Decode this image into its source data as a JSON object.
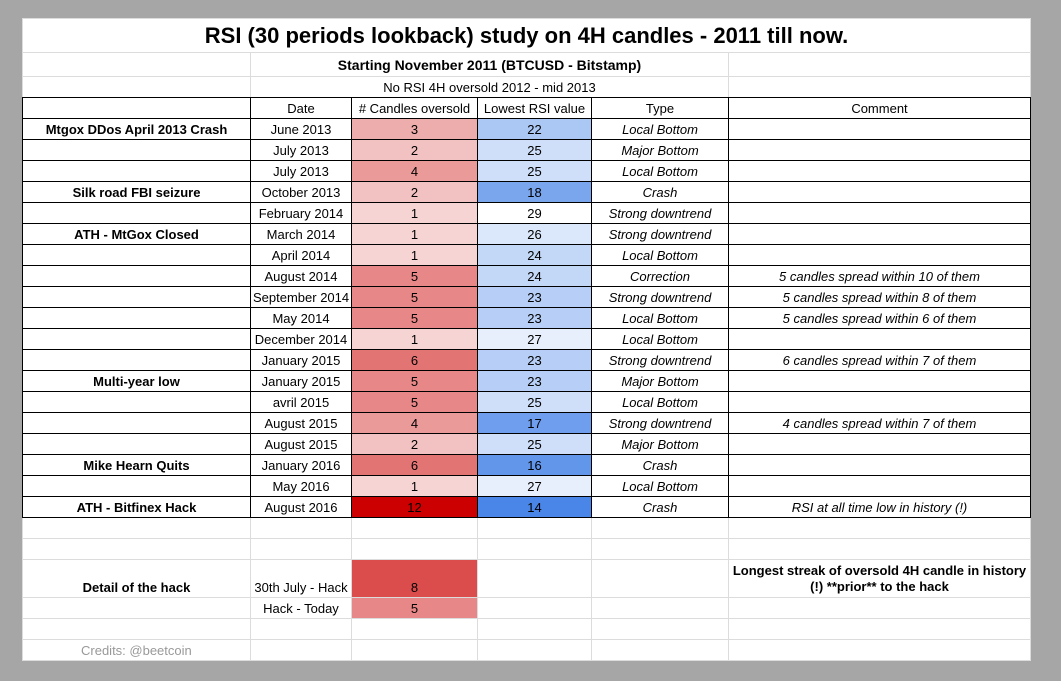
{
  "title": "RSI (30 periods lookback) study on 4H candles - 2011 till now.",
  "subtitle": "Starting November 2011 (BTCUSD - Bitstamp)",
  "note": "No RSI 4H oversold 2012 - mid 2013",
  "headers": {
    "date": "Date",
    "candles": "# Candles oversold",
    "rsi": "Lowest RSI value",
    "type": "Type",
    "comment": "Comment"
  },
  "rows": [
    {
      "label": "Mtgox DDos April 2013 Crash",
      "date": "June 2013",
      "candles": 3,
      "rsi": 22,
      "type": "Local Bottom"
    },
    {
      "date": "July 2013",
      "candles": 2,
      "rsi": 25,
      "type": "Major Bottom"
    },
    {
      "date": "July 2013",
      "candles": 4,
      "rsi": 25,
      "type": "Local Bottom"
    },
    {
      "label": "Silk road FBI seizure",
      "date": "October 2013",
      "candles": 2,
      "rsi": 18,
      "type": "Crash"
    },
    {
      "date": "February 2014",
      "candles": 1,
      "rsi": 29,
      "type": "Strong downtrend"
    },
    {
      "label": "ATH - MtGox Closed",
      "date": "March 2014",
      "candles": 1,
      "rsi": 26,
      "type": "Strong downtrend"
    },
    {
      "date": "April 2014",
      "candles": 1,
      "rsi": 24,
      "type": "Local Bottom"
    },
    {
      "date": "August 2014",
      "candles": 5,
      "rsi": 24,
      "type": "Correction",
      "comment": "5 candles spread within 10 of them"
    },
    {
      "date": "September 2014",
      "candles": 5,
      "rsi": 23,
      "type": "Strong downtrend",
      "comment": "5 candles spread within 8 of them"
    },
    {
      "date": "May 2014",
      "candles": 5,
      "rsi": 23,
      "type": "Local Bottom",
      "comment": "5 candles spread within 6 of them"
    },
    {
      "date": "December 2014",
      "candles": 1,
      "rsi": 27,
      "type": "Local Bottom"
    },
    {
      "date": "January 2015",
      "candles": 6,
      "rsi": 23,
      "type": "Strong downtrend",
      "comment": "6 candles spread within 7 of them"
    },
    {
      "label": "Multi-year low",
      "date": "January 2015",
      "candles": 5,
      "rsi": 23,
      "type": "Major Bottom"
    },
    {
      "date": "avril 2015",
      "candles": 5,
      "rsi": 25,
      "type": "Local Bottom"
    },
    {
      "date": "August 2015",
      "candles": 4,
      "rsi": 17,
      "type": "Strong downtrend",
      "comment": "4 candles spread within 7 of them"
    },
    {
      "date": "August 2015",
      "candles": 2,
      "rsi": 25,
      "type": "Major Bottom"
    },
    {
      "label": "Mike Hearn Quits",
      "date": "January 2016",
      "candles": 6,
      "rsi": 16,
      "type": "Crash"
    },
    {
      "date": "May 2016",
      "candles": 1,
      "rsi": 27,
      "type": "Local Bottom"
    },
    {
      "label": "ATH - Bitfinex Hack",
      "date": "August 2016",
      "candles": 12,
      "rsi": 14,
      "type": "Crash",
      "comment": "RSI at all time low in history (!)"
    }
  ],
  "hack": {
    "label": "Detail of the hack",
    "rows": [
      {
        "date": "30th July - Hack",
        "candles": 8
      },
      {
        "date": "Hack - Today",
        "candles": 5
      }
    ],
    "comment": "Longest streak of oversold 4H candle in history (!) **prior** to the hack"
  },
  "credits": "Credits: @beetcoin"
}
